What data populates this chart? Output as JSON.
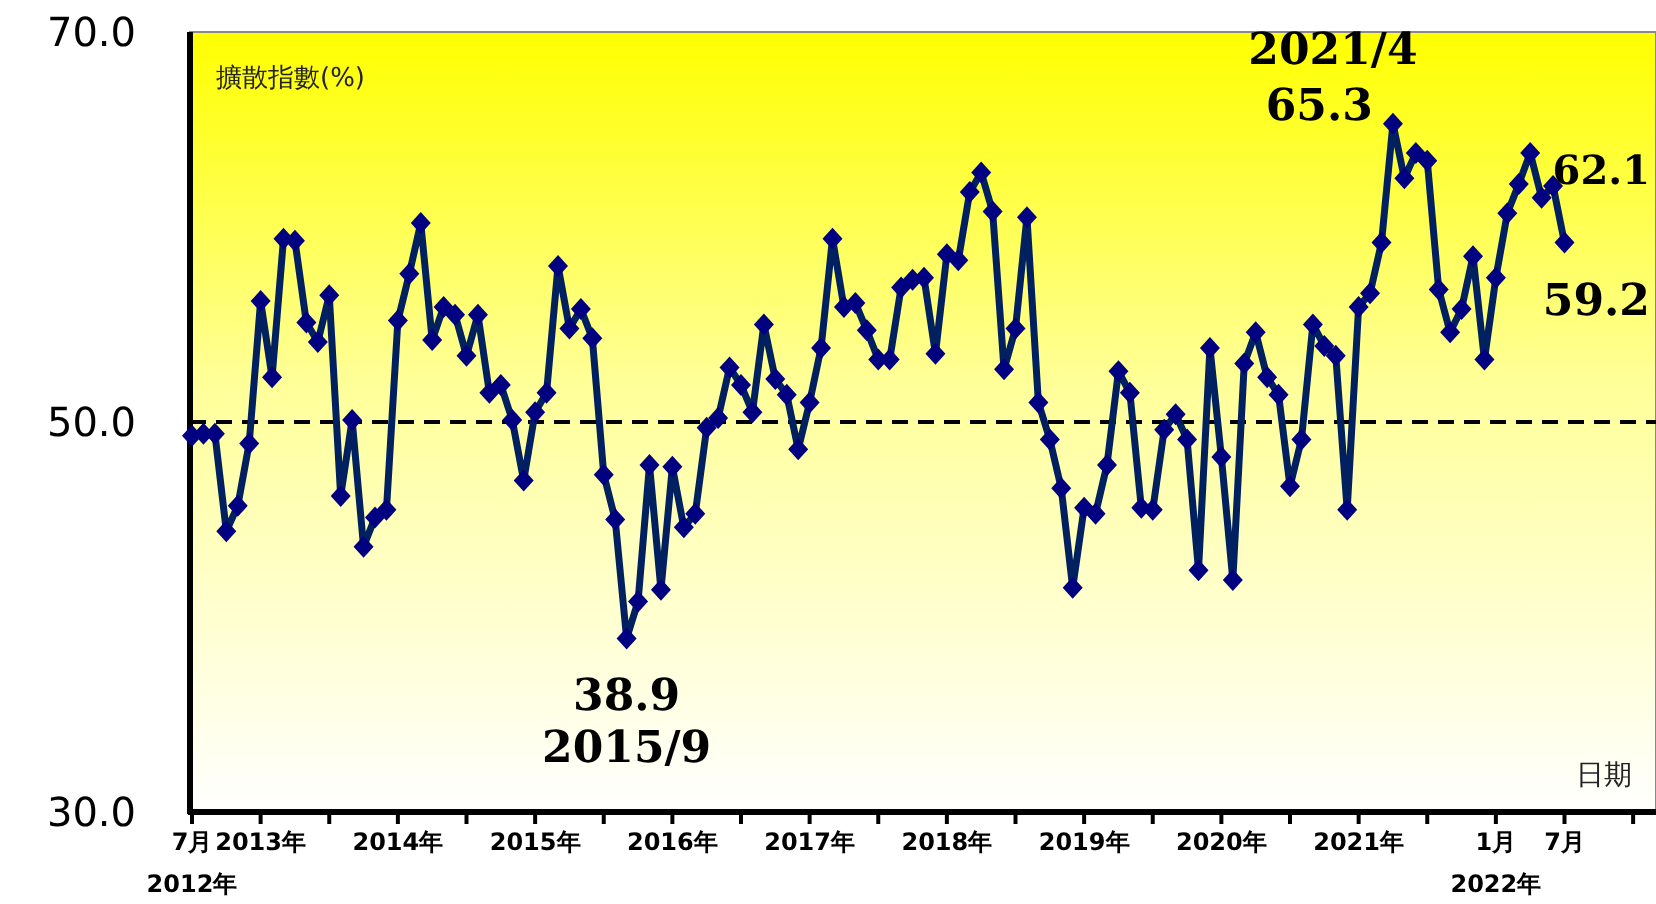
{
  "chart_data": {
    "type": "line",
    "xlabel": "日期",
    "ylabel": "擴散指數(%)",
    "x": [
      "2012-07",
      "2012-08",
      "2012-09",
      "2012-10",
      "2012-11",
      "2012-12",
      "2013-01",
      "2013-02",
      "2013-03",
      "2013-04",
      "2013-05",
      "2013-06",
      "2013-07",
      "2013-08",
      "2013-09",
      "2013-10",
      "2013-11",
      "2013-12",
      "2014-01",
      "2014-02",
      "2014-03",
      "2014-04",
      "2014-05",
      "2014-06",
      "2014-07",
      "2014-08",
      "2014-09",
      "2014-10",
      "2014-11",
      "2014-12",
      "2015-01",
      "2015-02",
      "2015-03",
      "2015-04",
      "2015-05",
      "2015-06",
      "2015-07",
      "2015-08",
      "2015-09",
      "2015-10",
      "2015-11",
      "2015-12",
      "2016-01",
      "2016-02",
      "2016-03",
      "2016-04",
      "2016-05",
      "2016-06",
      "2016-07",
      "2016-08",
      "2016-09",
      "2016-10",
      "2016-11",
      "2016-12",
      "2017-01",
      "2017-02",
      "2017-03",
      "2017-04",
      "2017-05",
      "2017-06",
      "2017-07",
      "2017-08",
      "2017-09",
      "2017-10",
      "2017-11",
      "2017-12",
      "2018-01",
      "2018-02",
      "2018-03",
      "2018-04",
      "2018-05",
      "2018-06",
      "2018-07",
      "2018-08",
      "2018-09",
      "2018-10",
      "2018-11",
      "2018-12",
      "2019-01",
      "2019-02",
      "2019-03",
      "2019-04",
      "2019-05",
      "2019-06",
      "2019-07",
      "2019-08",
      "2019-09",
      "2019-10",
      "2019-11",
      "2019-12",
      "2020-01",
      "2020-02",
      "2020-03",
      "2020-04",
      "2020-05",
      "2020-06",
      "2020-07",
      "2020-08",
      "2020-09",
      "2020-10",
      "2020-11",
      "2020-12",
      "2021-01",
      "2021-02",
      "2021-03",
      "2021-04",
      "2021-05",
      "2021-06",
      "2021-07",
      "2021-08",
      "2021-09",
      "2021-10",
      "2021-11",
      "2021-12",
      "2022-01",
      "2022-02",
      "2022-03",
      "2022-04",
      "2022-05",
      "2022-06",
      "2022-07"
    ],
    "series": [
      {
        "color": "#002060",
        "values": [
          49.3,
          49.4,
          49.4,
          44.4,
          45.7,
          48.9,
          56.2,
          52.3,
          59.4,
          59.3,
          55.1,
          54.1,
          56.5,
          46.2,
          50.1,
          43.6,
          45.1,
          45.5,
          55.2,
          57.6,
          60.2,
          54.2,
          55.9,
          55.5,
          53.4,
          55.5,
          51.5,
          51.9,
          50.1,
          47.0,
          50.5,
          51.5,
          58.0,
          54.8,
          55.8,
          54.3,
          47.3,
          45.0,
          38.9,
          40.8,
          47.8,
          41.4,
          47.7,
          44.6,
          45.3,
          49.7,
          50.2,
          52.8,
          51.9,
          50.5,
          55.0,
          52.2,
          51.4,
          48.6,
          51.0,
          53.8,
          59.4,
          55.9,
          56.1,
          54.7,
          53.2,
          53.2,
          56.9,
          57.3,
          57.4,
          53.5,
          58.6,
          58.3,
          61.8,
          62.8,
          60.8,
          52.7,
          54.8,
          60.5,
          51.0,
          49.1,
          46.6,
          41.5,
          45.6,
          45.3,
          47.8,
          52.6,
          51.5,
          45.6,
          45.5,
          49.6,
          50.4,
          49.1,
          42.4,
          53.8,
          48.2,
          41.9,
          53.0,
          54.6,
          52.3,
          51.4,
          46.7,
          49.1,
          55.0,
          53.9,
          53.4,
          45.5,
          55.9,
          56.6,
          59.2,
          65.3,
          62.5,
          63.8,
          63.4,
          56.8,
          54.6,
          55.8,
          58.5,
          53.2,
          57.4,
          60.7,
          62.2,
          63.8,
          61.5,
          62.1,
          59.2
        ],
        "value_labels": [
          null,
          null,
          null,
          null,
          null,
          null,
          null,
          null,
          null,
          null,
          null,
          null,
          null,
          null,
          null,
          null,
          null,
          null,
          null,
          null,
          null,
          null,
          null,
          null,
          null,
          null,
          null,
          null,
          null,
          null,
          null,
          null,
          null,
          null,
          null,
          null,
          null,
          null,
          "38.9",
          null,
          null,
          null,
          null,
          null,
          null,
          null,
          null,
          null,
          null,
          null,
          null,
          null,
          null,
          null,
          null,
          null,
          null,
          null,
          null,
          null,
          null,
          null,
          null,
          null,
          null,
          null,
          null,
          null,
          null,
          null,
          null,
          null,
          null,
          null,
          null,
          null,
          null,
          null,
          null,
          null,
          null,
          null,
          null,
          null,
          null,
          null,
          null,
          null,
          null,
          null,
          null,
          null,
          null,
          null,
          null,
          null,
          null,
          null,
          null,
          null,
          null,
          null,
          null,
          null,
          null,
          "65.3",
          null,
          null,
          null,
          null,
          null,
          null,
          null,
          null,
          null,
          null,
          null,
          null,
          null,
          "62.1",
          "59.2"
        ]
      }
    ],
    "annotations": [
      {
        "text": "2015/9",
        "x": "2015-09",
        "y": 38.9
      },
      {
        "text": "2021/4",
        "x": "2021-04",
        "y": 65.3
      }
    ],
    "xlim": [
      "2012-07",
      "2023-03"
    ],
    "xticks": [
      {
        "value": "2012-07",
        "label": "7月\n2012年"
      },
      {
        "value": "2013-01",
        "label": "2013年"
      },
      {
        "value": "2013-07",
        "label": null
      },
      {
        "value": "2014-01",
        "label": "2014年"
      },
      {
        "value": "2014-07",
        "label": null
      },
      {
        "value": "2015-01",
        "label": "2015年"
      },
      {
        "value": "2015-07",
        "label": null
      },
      {
        "value": "2016-01",
        "label": "2016年"
      },
      {
        "value": "2016-07",
        "label": null
      },
      {
        "value": "2017-01",
        "label": "2017年"
      },
      {
        "value": "2017-07",
        "label": null
      },
      {
        "value": "2018-01",
        "label": "2018年"
      },
      {
        "value": "2018-07",
        "label": null
      },
      {
        "value": "2019-01",
        "label": "2019年"
      },
      {
        "value": "2019-07",
        "label": null
      },
      {
        "value": "2020-01",
        "label": "2020年"
      },
      {
        "value": "2020-07",
        "label": null
      },
      {
        "value": "2021-01",
        "label": "2021年"
      },
      {
        "value": "2021-07",
        "label": null
      },
      {
        "value": "2022-01",
        "label": "1月\n2022年"
      },
      {
        "value": "2022-07",
        "label": "7月"
      },
      {
        "value": "2023-01",
        "label": null
      }
    ],
    "ylim": [
      30,
      70
    ],
    "yticks": [
      {
        "value": 30,
        "label": "30.0"
      },
      {
        "value": 50,
        "label": "50.0"
      },
      {
        "value": 70,
        "label": "70.0"
      }
    ],
    "ref_lines": [
      {
        "axis": "y",
        "value": 50,
        "color": "#000000",
        "line_style": "dashed"
      }
    ],
    "grid": false,
    "marker": "diamond",
    "line_style": "solid"
  }
}
